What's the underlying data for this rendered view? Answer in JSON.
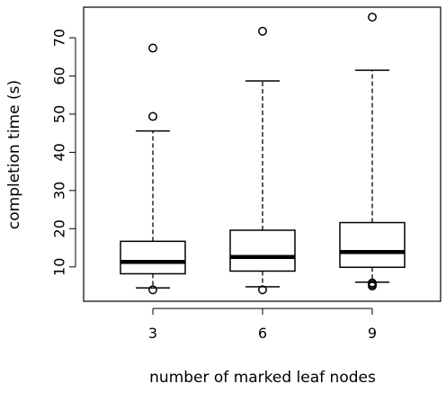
{
  "chart_data": {
    "type": "boxplot",
    "title": "",
    "xlabel": "number of marked leaf nodes",
    "ylabel": "completion time (s)",
    "ylim": [
      1,
      78
    ],
    "y_ticks": [
      10,
      20,
      30,
      40,
      50,
      60,
      70
    ],
    "categories": [
      "3",
      "6",
      "9"
    ],
    "boxes": [
      {
        "category": "3",
        "whisker_low": 4.5,
        "q1": 8.2,
        "median": 11.3,
        "q3": 16.7,
        "whisker_high": 45.6,
        "outliers": [
          4.0,
          49.4,
          67.3
        ]
      },
      {
        "category": "6",
        "whisker_low": 4.8,
        "q1": 8.9,
        "median": 12.6,
        "q3": 19.6,
        "whisker_high": 58.7,
        "outliers": [
          4.0,
          71.7
        ]
      },
      {
        "category": "9",
        "whisker_low": 6.0,
        "q1": 9.9,
        "median": 13.9,
        "q3": 21.6,
        "whisker_high": 61.5,
        "outliers": [
          5.0,
          5.4,
          5.8,
          75.4
        ]
      }
    ]
  }
}
